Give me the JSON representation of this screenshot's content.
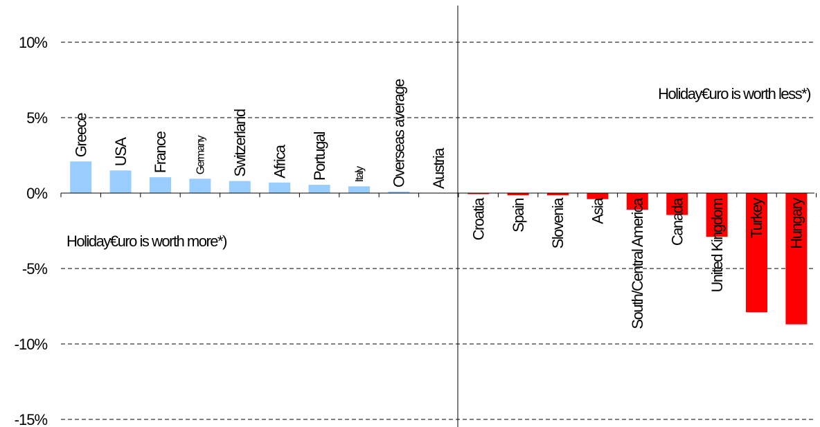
{
  "chart_data": {
    "type": "bar",
    "categories": [
      "Greece",
      "USA",
      "France",
      "Germany",
      "Switzerland",
      "Africa",
      "Portugal",
      "Italy",
      "Overseas average",
      "Austria",
      "Croatia",
      "Spain",
      "Slovenia",
      "Asia",
      "South/Central America",
      "Canada",
      "United Kingdom",
      "Turkey",
      "Hungary"
    ],
    "values": [
      2.1,
      1.5,
      1.05,
      0.95,
      0.8,
      0.7,
      0.55,
      0.45,
      0.1,
      0.0,
      -0.05,
      -0.15,
      -0.15,
      -0.4,
      -1.1,
      -1.45,
      -2.9,
      -7.9,
      -8.7
    ],
    "ylim": [
      -15,
      12
    ],
    "yticks": [
      10,
      5,
      0,
      -5,
      -10,
      -15
    ],
    "ytick_labels": [
      "10%",
      "5%",
      "0%",
      "-5%",
      "-10%",
      "-15%"
    ],
    "grid": true,
    "colors": {
      "positive": "#99ccff",
      "negative": "#ff0000"
    },
    "annotations": {
      "worth_less": "Holiday€uro is worth less*)",
      "worth_more": "Holiday€uro is worth more*)"
    },
    "xlabel": "",
    "ylabel": ""
  }
}
